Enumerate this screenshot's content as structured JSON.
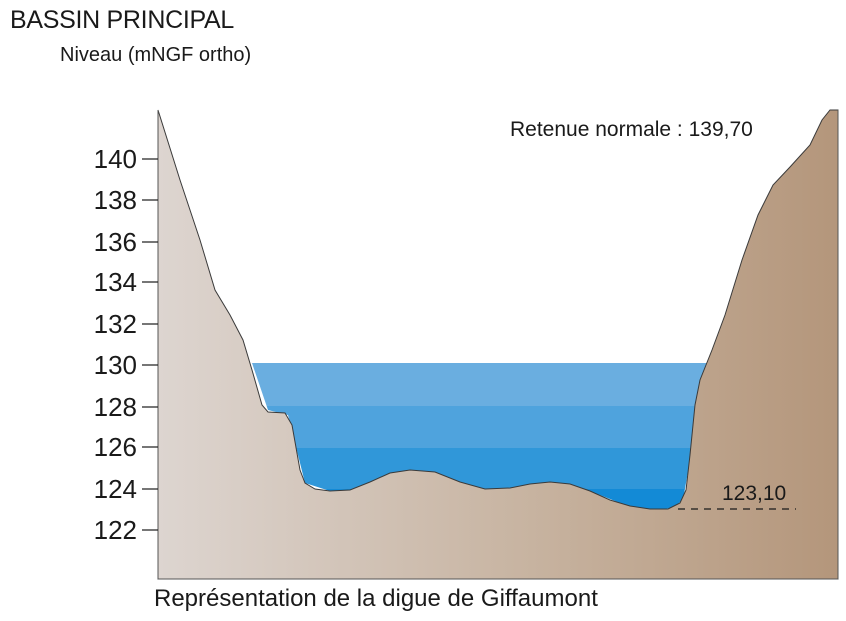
{
  "header": {
    "title": "BASSIN PRINCIPAL",
    "subtitle": "Niveau (mNGF ortho)"
  },
  "annotations": {
    "retenue": "Retenue normale : 139,70",
    "bottom_level": "123,10"
  },
  "caption": "Représentation de la digue de Giffaumont",
  "colors": {
    "terrain_left": "#ddd4ce",
    "terrain_right": "#b79a80",
    "water_bands": [
      "#6aaee0",
      "#4ea2dc",
      "#2f96d8",
      "#138ad6"
    ]
  },
  "chart_data": {
    "type": "area",
    "y_axis_ticks": [
      "140",
      "138",
      "136",
      "134",
      "132",
      "130",
      "128",
      "126",
      "124",
      "122"
    ],
    "water_levels_shown": [
      130,
      128,
      126,
      124
    ],
    "normal_retention_level": 139.7,
    "lowest_level": 123.1
  }
}
